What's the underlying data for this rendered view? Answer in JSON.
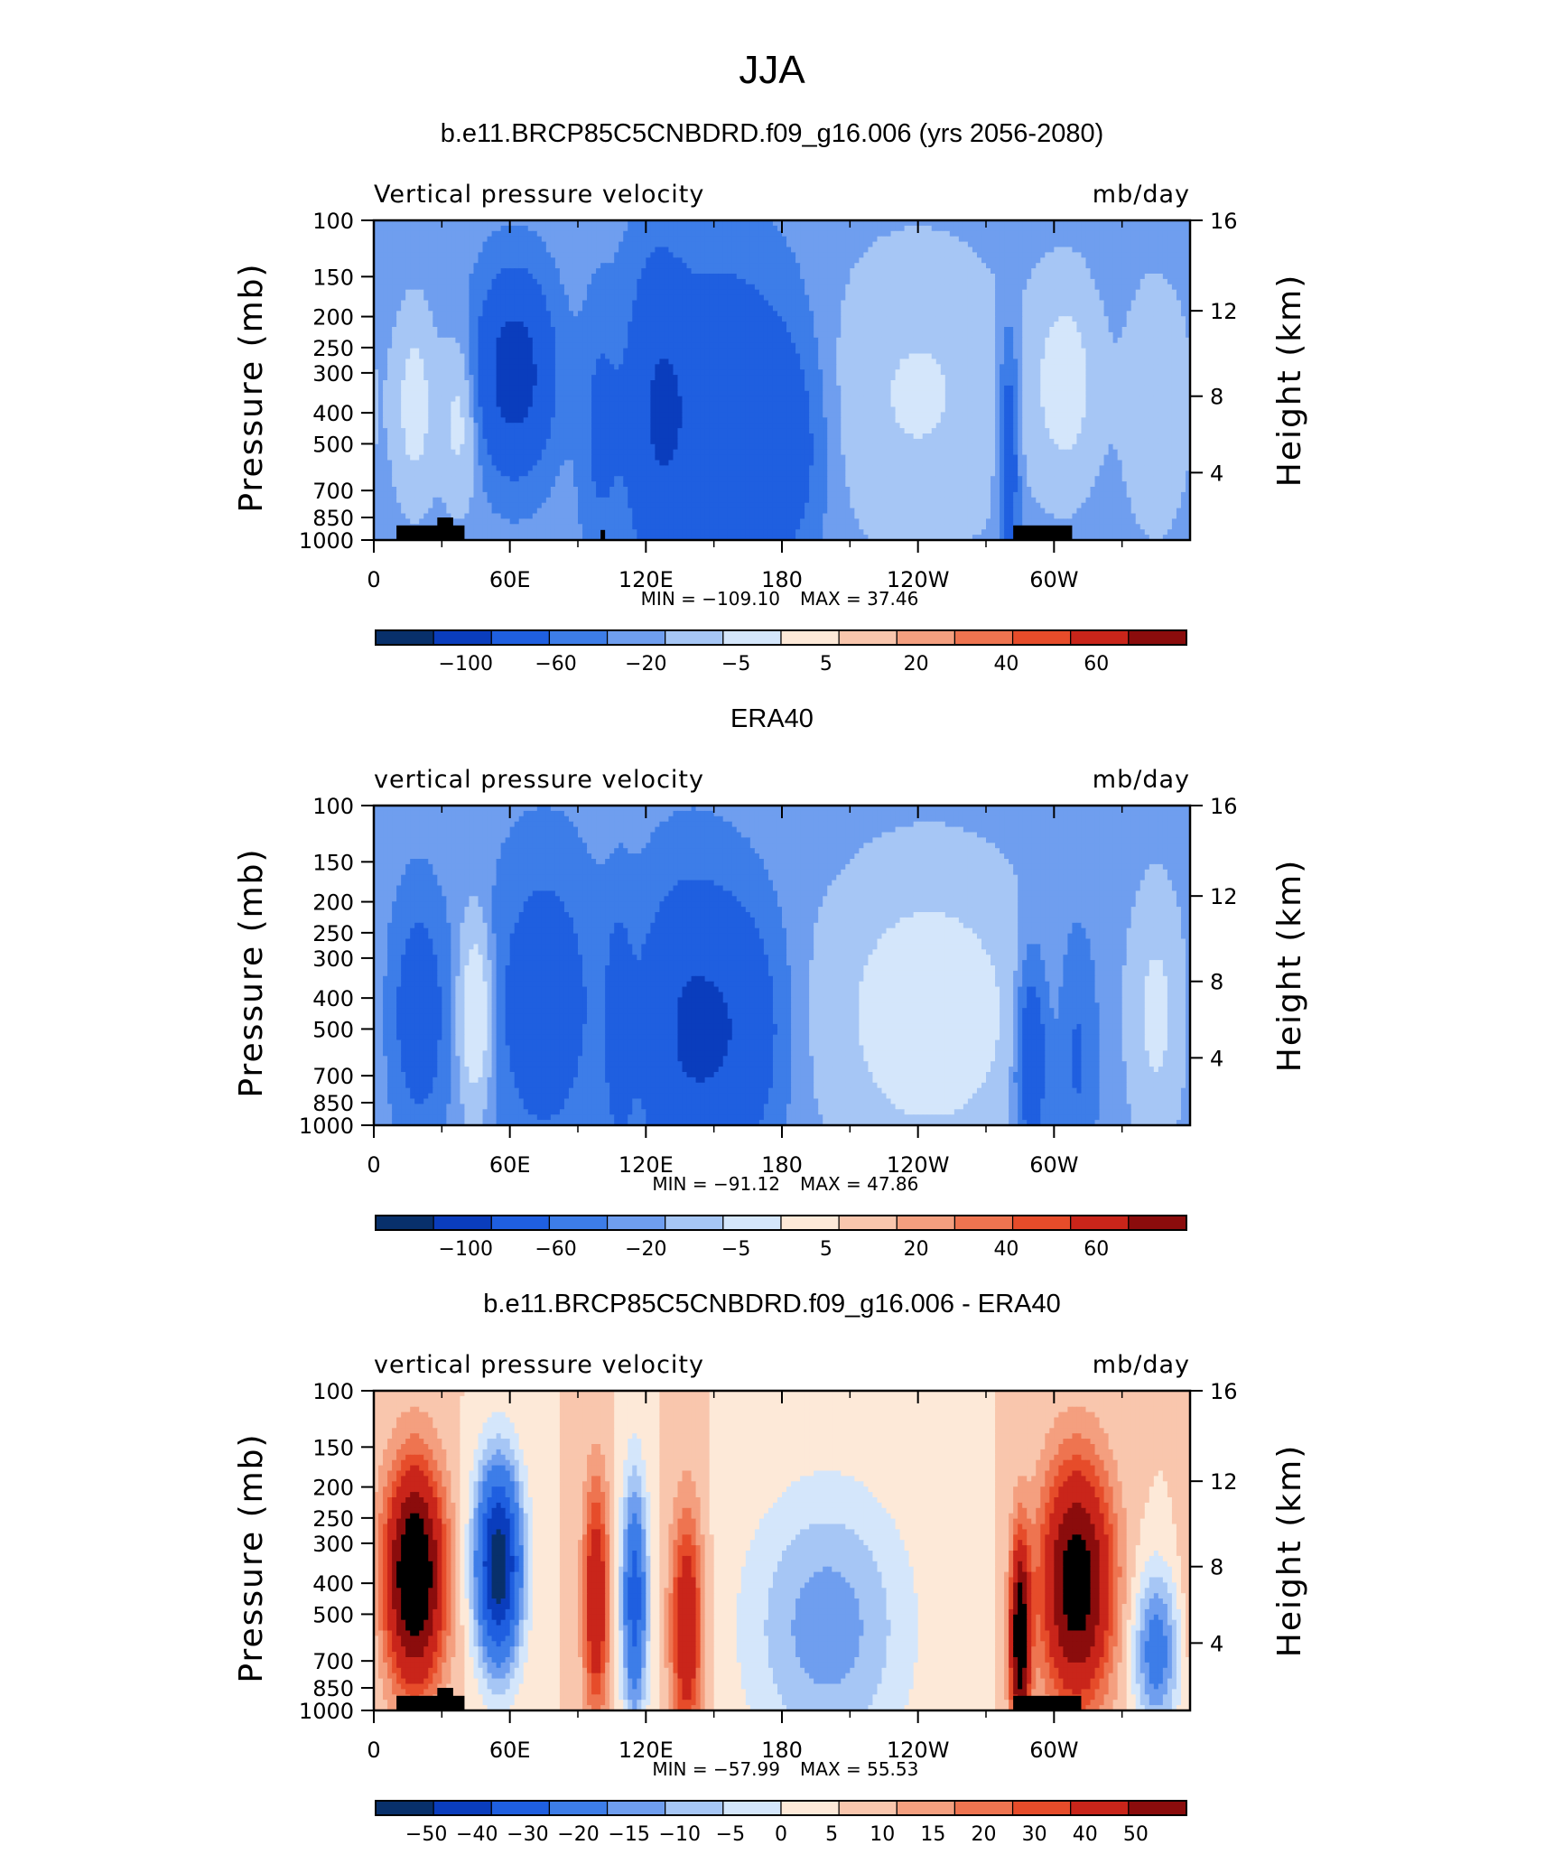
{
  "figure": {
    "title": "JJA"
  },
  "chart_data": [
    {
      "type": "heatmap",
      "title": "b.e11.BRCP85C5CNBDRD.f09_g16.006 (yrs 2056-2080)",
      "left_label": "Vertical pressure velocity",
      "right_label": "mb/day",
      "ylabel": "Pressure (mb)",
      "ylabel_right": "Height (km)",
      "y_ticks": [
        "100",
        "150",
        "200",
        "250",
        "300",
        "400",
        "500",
        "700",
        "850",
        "1000"
      ],
      "y_ticks_right": [
        "16",
        "12",
        "8",
        "4"
      ],
      "x_ticks": [
        "0",
        "60E",
        "120E",
        "180",
        "120W",
        "60W"
      ],
      "min_text": "MIN = −109.10",
      "max_text": "MAX =  37.46",
      "levels": [
        -100,
        -60,
        -20,
        -5,
        5,
        20,
        40,
        60
      ],
      "colorbar_labels": [
        "−100",
        "−60",
        "−20",
        "−5",
        "5",
        "20",
        "40",
        "60"
      ],
      "colors": [
        "#08306b",
        "#0a3dbd",
        "#1f5fe0",
        "#3d7de8",
        "#6f9eef",
        "#a6c6f5",
        "#d4e6fb",
        "#fde9d8",
        "#f9c6ad",
        "#f49f7f",
        "#ee7450",
        "#e64c2a",
        "#c9251a",
        "#8b0c0c"
      ],
      "features": [
        {
          "lon": 18,
          "p": 380,
          "amp": 30,
          "slon": 6,
          "sp": 0.45
        },
        {
          "lon": 38,
          "p": 420,
          "amp": 28,
          "slon": 6,
          "sp": 0.4
        },
        {
          "lon": 62,
          "p": 300,
          "amp": -85,
          "slon": 11,
          "sp": 0.45
        },
        {
          "lon": 100,
          "p": 450,
          "amp": -25,
          "slon": 6,
          "sp": 0.6
        },
        {
          "lon": 125,
          "p": 400,
          "amp": -45,
          "slon": 9,
          "sp": 0.8
        },
        {
          "lon": 155,
          "p": 400,
          "amp": -55,
          "slon": 22,
          "sp": 0.7
        },
        {
          "lon": 182,
          "p": 550,
          "amp": -25,
          "slon": 10,
          "sp": 0.5
        },
        {
          "lon": 240,
          "p": 350,
          "amp": 22,
          "slon": 28,
          "sp": 0.7
        },
        {
          "lon": 280,
          "p": 550,
          "amp": -45,
          "slon": 3,
          "sp": 0.6
        },
        {
          "lon": 305,
          "p": 320,
          "amp": 30,
          "slon": 10,
          "sp": 0.5
        },
        {
          "lon": 345,
          "p": 380,
          "amp": 18,
          "slon": 10,
          "sp": 0.6
        }
      ],
      "topography": [
        [
          10,
          40,
          900
        ],
        [
          28,
          35,
          850
        ],
        [
          100,
          102,
          930
        ],
        [
          282,
          308,
          900
        ]
      ]
    },
    {
      "type": "heatmap",
      "title": "ERA40",
      "left_label": "vertical pressure velocity",
      "right_label": "mb/day",
      "ylabel": "Pressure (mb)",
      "ylabel_right": "Height (km)",
      "y_ticks": [
        "100",
        "150",
        "200",
        "250",
        "300",
        "400",
        "500",
        "700",
        "850",
        "1000"
      ],
      "y_ticks_right": [
        "16",
        "12",
        "8",
        "4"
      ],
      "x_ticks": [
        "0",
        "60E",
        "120E",
        "180",
        "120W",
        "60W"
      ],
      "min_text": "MIN = −91.12",
      "max_text": "MAX =  47.86",
      "levels": [
        -100,
        -60,
        -20,
        -5,
        5,
        20,
        40,
        60
      ],
      "colorbar_labels": [
        "−100",
        "−60",
        "−20",
        "−5",
        "5",
        "20",
        "40",
        "60"
      ],
      "colors": [
        "#08306b",
        "#0a3dbd",
        "#1f5fe0",
        "#3d7de8",
        "#6f9eef",
        "#a6c6f5",
        "#d4e6fb",
        "#fde9d8",
        "#f9c6ad",
        "#f49f7f",
        "#ee7450",
        "#e64c2a",
        "#c9251a",
        "#8b0c0c"
      ],
      "features": [
        {
          "lon": 20,
          "p": 450,
          "amp": -40,
          "slon": 8,
          "sp": 0.55
        },
        {
          "lon": 45,
          "p": 450,
          "amp": 45,
          "slon": 5,
          "sp": 0.45
        },
        {
          "lon": 75,
          "p": 420,
          "amp": -40,
          "slon": 15,
          "sp": 0.7
        },
        {
          "lon": 108,
          "p": 500,
          "amp": -30,
          "slon": 4,
          "sp": 0.6
        },
        {
          "lon": 140,
          "p": 500,
          "amp": -65,
          "slon": 16,
          "sp": 0.7
        },
        {
          "lon": 165,
          "p": 500,
          "amp": -30,
          "slon": 12,
          "sp": 0.6
        },
        {
          "lon": 245,
          "p": 450,
          "amp": 35,
          "slon": 30,
          "sp": 0.7
        },
        {
          "lon": 290,
          "p": 600,
          "amp": -50,
          "slon": 5,
          "sp": 0.5
        },
        {
          "lon": 310,
          "p": 600,
          "amp": -25,
          "slon": 6,
          "sp": 0.6
        },
        {
          "lon": 345,
          "p": 450,
          "amp": 25,
          "slon": 8,
          "sp": 0.6
        }
      ],
      "topography": []
    },
    {
      "type": "heatmap",
      "title": "b.e11.BRCP85C5CNBDRD.f09_g16.006 - ERA40",
      "left_label": "vertical pressure velocity",
      "right_label": "mb/day",
      "ylabel": "Pressure (mb)",
      "ylabel_right": "Height (km)",
      "y_ticks": [
        "100",
        "150",
        "200",
        "250",
        "300",
        "400",
        "500",
        "700",
        "850",
        "1000"
      ],
      "y_ticks_right": [
        "16",
        "12",
        "8",
        "4"
      ],
      "x_ticks": [
        "0",
        "60E",
        "120E",
        "180",
        "120W",
        "60W"
      ],
      "min_text": "MIN = −57.99",
      "max_text": "MAX =  55.53",
      "levels": [
        -50,
        -40,
        -30,
        -20,
        -15,
        -10,
        -5,
        0,
        5,
        10,
        15,
        20,
        30,
        40,
        50
      ],
      "colorbar_labels": [
        "−50",
        "−40",
        "−30",
        "−20",
        "−15",
        "−10",
        "−5",
        "0",
        "5",
        "10",
        "15",
        "20",
        "30",
        "40",
        "50"
      ],
      "colors": [
        "#08306b",
        "#0a3dbd",
        "#1f5fe0",
        "#3d7de8",
        "#6f9eef",
        "#a6c6f5",
        "#d4e6fb",
        "#fde9d8",
        "#f9c6ad",
        "#f49f7f",
        "#ee7450",
        "#e64c2a",
        "#c9251a",
        "#8b0c0c"
      ],
      "features": [
        {
          "lon": 18,
          "p": 380,
          "amp": 55,
          "slon": 9,
          "sp": 0.55
        },
        {
          "lon": 55,
          "p": 350,
          "amp": -58,
          "slon": 7,
          "sp": 0.5
        },
        {
          "lon": 98,
          "p": 450,
          "amp": 30,
          "slon": 4,
          "sp": 0.6
        },
        {
          "lon": 115,
          "p": 450,
          "amp": -35,
          "slon": 4,
          "sp": 0.6
        },
        {
          "lon": 138,
          "p": 550,
          "amp": 30,
          "slon": 5,
          "sp": 0.6
        },
        {
          "lon": 200,
          "p": 550,
          "amp": -18,
          "slon": 25,
          "sp": 0.7
        },
        {
          "lon": 285,
          "p": 600,
          "amp": 50,
          "slon": 3,
          "sp": 0.5
        },
        {
          "lon": 310,
          "p": 400,
          "amp": 48,
          "slon": 11,
          "sp": 0.6
        },
        {
          "lon": 345,
          "p": 650,
          "amp": -25,
          "slon": 7,
          "sp": 0.4
        }
      ],
      "topography": [
        [
          10,
          40,
          900
        ],
        [
          28,
          35,
          850
        ],
        [
          282,
          312,
          900
        ]
      ]
    }
  ]
}
